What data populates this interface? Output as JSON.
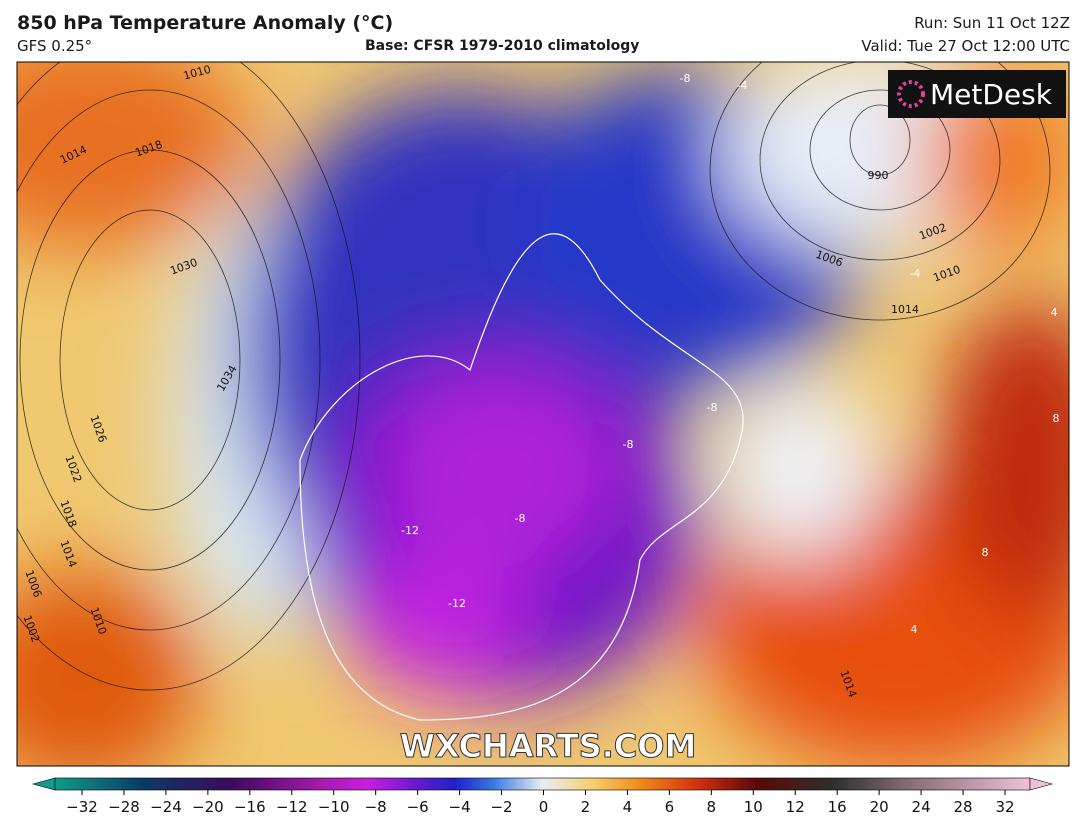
{
  "header": {
    "title": "850 hPa Temperature Anomaly (°C)",
    "model": "GFS 0.25°",
    "base": "Base: CFSR 1979-2010 climatology",
    "run": "Run: Sun 11 Oct 12Z",
    "valid": "Valid: Tue 27 Oct 12:00 UTC"
  },
  "map": {
    "logo": "MetDesk",
    "watermark": "WXCHARTS.COM",
    "contour_labels": [
      "1010",
      "1014",
      "1018",
      "1030",
      "1034",
      "1026",
      "1022",
      "1018",
      "1014",
      "1010",
      "1006",
      "1002",
      "990",
      "1002",
      "1006",
      "1010",
      "1014",
      "1014",
      "-8",
      "-8",
      "-8",
      "-12",
      "-12",
      "-8",
      "-4",
      "-4",
      "4",
      "8",
      "8",
      "4"
    ]
  },
  "colorbar": {
    "ticks": [
      "−32",
      "−28",
      "−24",
      "−20",
      "−16",
      "−12",
      "−10",
      "−8",
      "−6",
      "−4",
      "−2",
      "0",
      "2",
      "4",
      "6",
      "8",
      "10",
      "12",
      "16",
      "20",
      "24",
      "28",
      "32"
    ]
  }
}
